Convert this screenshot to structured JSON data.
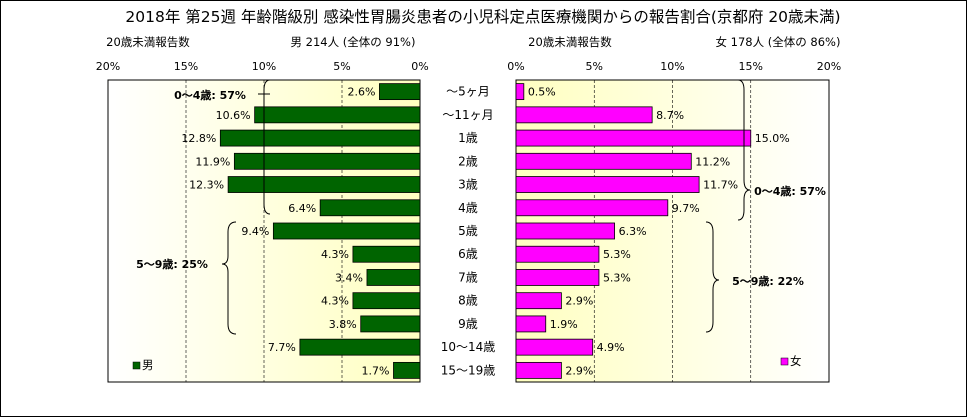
{
  "title": "2018年 第25週 年齢階級別 感染性胃腸炎患者の小児科定点医療機関からの報告割合(京都府 20歳未満)",
  "colors": {
    "male": "#006400",
    "female": "#FF00FF",
    "plot_bg_inner": "#FFFFC0",
    "plot_bg_outer": "#FFFFFF"
  },
  "male_header": {
    "sub": "20歳未満報告数",
    "main": "男  214人  (全体の  91%)"
  },
  "female_header": {
    "sub": "20歳未満報告数",
    "main": "女  178人  (全体の  86%)"
  },
  "legend": {
    "male": "男",
    "female": "女"
  },
  "annotations": {
    "male_0_4": "0～4歳: 57%",
    "male_5_9": "5～9歳: 25%",
    "female_0_4": "0～4歳: 57%",
    "female_5_9": "5～9歳: 22%"
  },
  "chart_data": {
    "type": "bar",
    "orientation": "horizontal-population-pyramid",
    "categories": [
      "～5ヶ月",
      "～11ヶ月",
      "1歳",
      "2歳",
      "3歳",
      "4歳",
      "5歳",
      "6歳",
      "7歳",
      "8歳",
      "9歳",
      "10～14歳",
      "15～19歳"
    ],
    "xlim": [
      0,
      20
    ],
    "x_ticks": [
      "0%",
      "5%",
      "10%",
      "15%",
      "20%"
    ],
    "series": [
      {
        "name": "男",
        "values": [
          2.6,
          10.6,
          12.8,
          11.9,
          12.3,
          6.4,
          9.4,
          4.3,
          3.4,
          4.3,
          3.8,
          7.7,
          1.7
        ],
        "labels": [
          "2.6%",
          "10.6%",
          "12.8%",
          "11.9%",
          "12.3%",
          "6.4%",
          "9.4%",
          "4.3%",
          "3.4%",
          "4.3%",
          "3.8%",
          "7.7%",
          "1.7%"
        ]
      },
      {
        "name": "女",
        "values": [
          0.5,
          8.7,
          15.0,
          11.2,
          11.7,
          9.7,
          6.3,
          5.3,
          5.3,
          2.9,
          1.9,
          4.9,
          2.9
        ],
        "labels": [
          "0.5%",
          "8.7%",
          "15.0%",
          "11.2%",
          "11.7%",
          "9.7%",
          "6.3%",
          "5.3%",
          "5.3%",
          "2.9%",
          "1.9%",
          "4.9%",
          "2.9%"
        ]
      }
    ]
  }
}
